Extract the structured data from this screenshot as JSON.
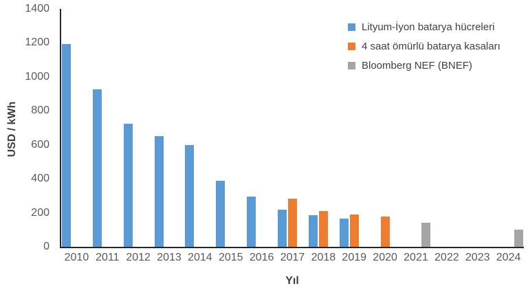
{
  "chart_data": {
    "type": "bar",
    "title": "",
    "xlabel": "Yıl",
    "ylabel": "USD / kWh",
    "ylim": [
      0,
      1400
    ],
    "ytick_step": 200,
    "grid": false,
    "legend_position": "top-right",
    "background_color": "#ffffff",
    "axis_line_color": "#262626",
    "tick_label_color": "#595959",
    "axis_title_color": "#3f3f3f",
    "legend_text_color": "#404040",
    "categories": [
      "2010",
      "2011",
      "2012",
      "2013",
      "2014",
      "2015",
      "2016",
      "2017",
      "2018",
      "2019",
      "2020",
      "2021",
      "2022",
      "2023",
      "2024"
    ],
    "series": [
      {
        "id": "lityum-iyon-hucreleri",
        "name": "Lityum-İyon batarya hücreleri",
        "color": "#5B9BD5",
        "values": [
          1195,
          925,
          725,
          650,
          600,
          390,
          295,
          220,
          185,
          165,
          null,
          null,
          null,
          null,
          null
        ]
      },
      {
        "id": "batarya-kasalari",
        "name": "4 saat ömürlü batarya kasaları",
        "color": "#ED7D31",
        "values": [
          null,
          null,
          null,
          null,
          null,
          null,
          null,
          285,
          210,
          190,
          180,
          null,
          null,
          null,
          null
        ]
      },
      {
        "id": "bnef",
        "name": "Bloomberg NEF (BNEF)",
        "color": "#A5A5A5",
        "values": [
          null,
          null,
          null,
          null,
          null,
          null,
          null,
          null,
          null,
          null,
          null,
          140,
          null,
          null,
          100
        ]
      }
    ]
  }
}
